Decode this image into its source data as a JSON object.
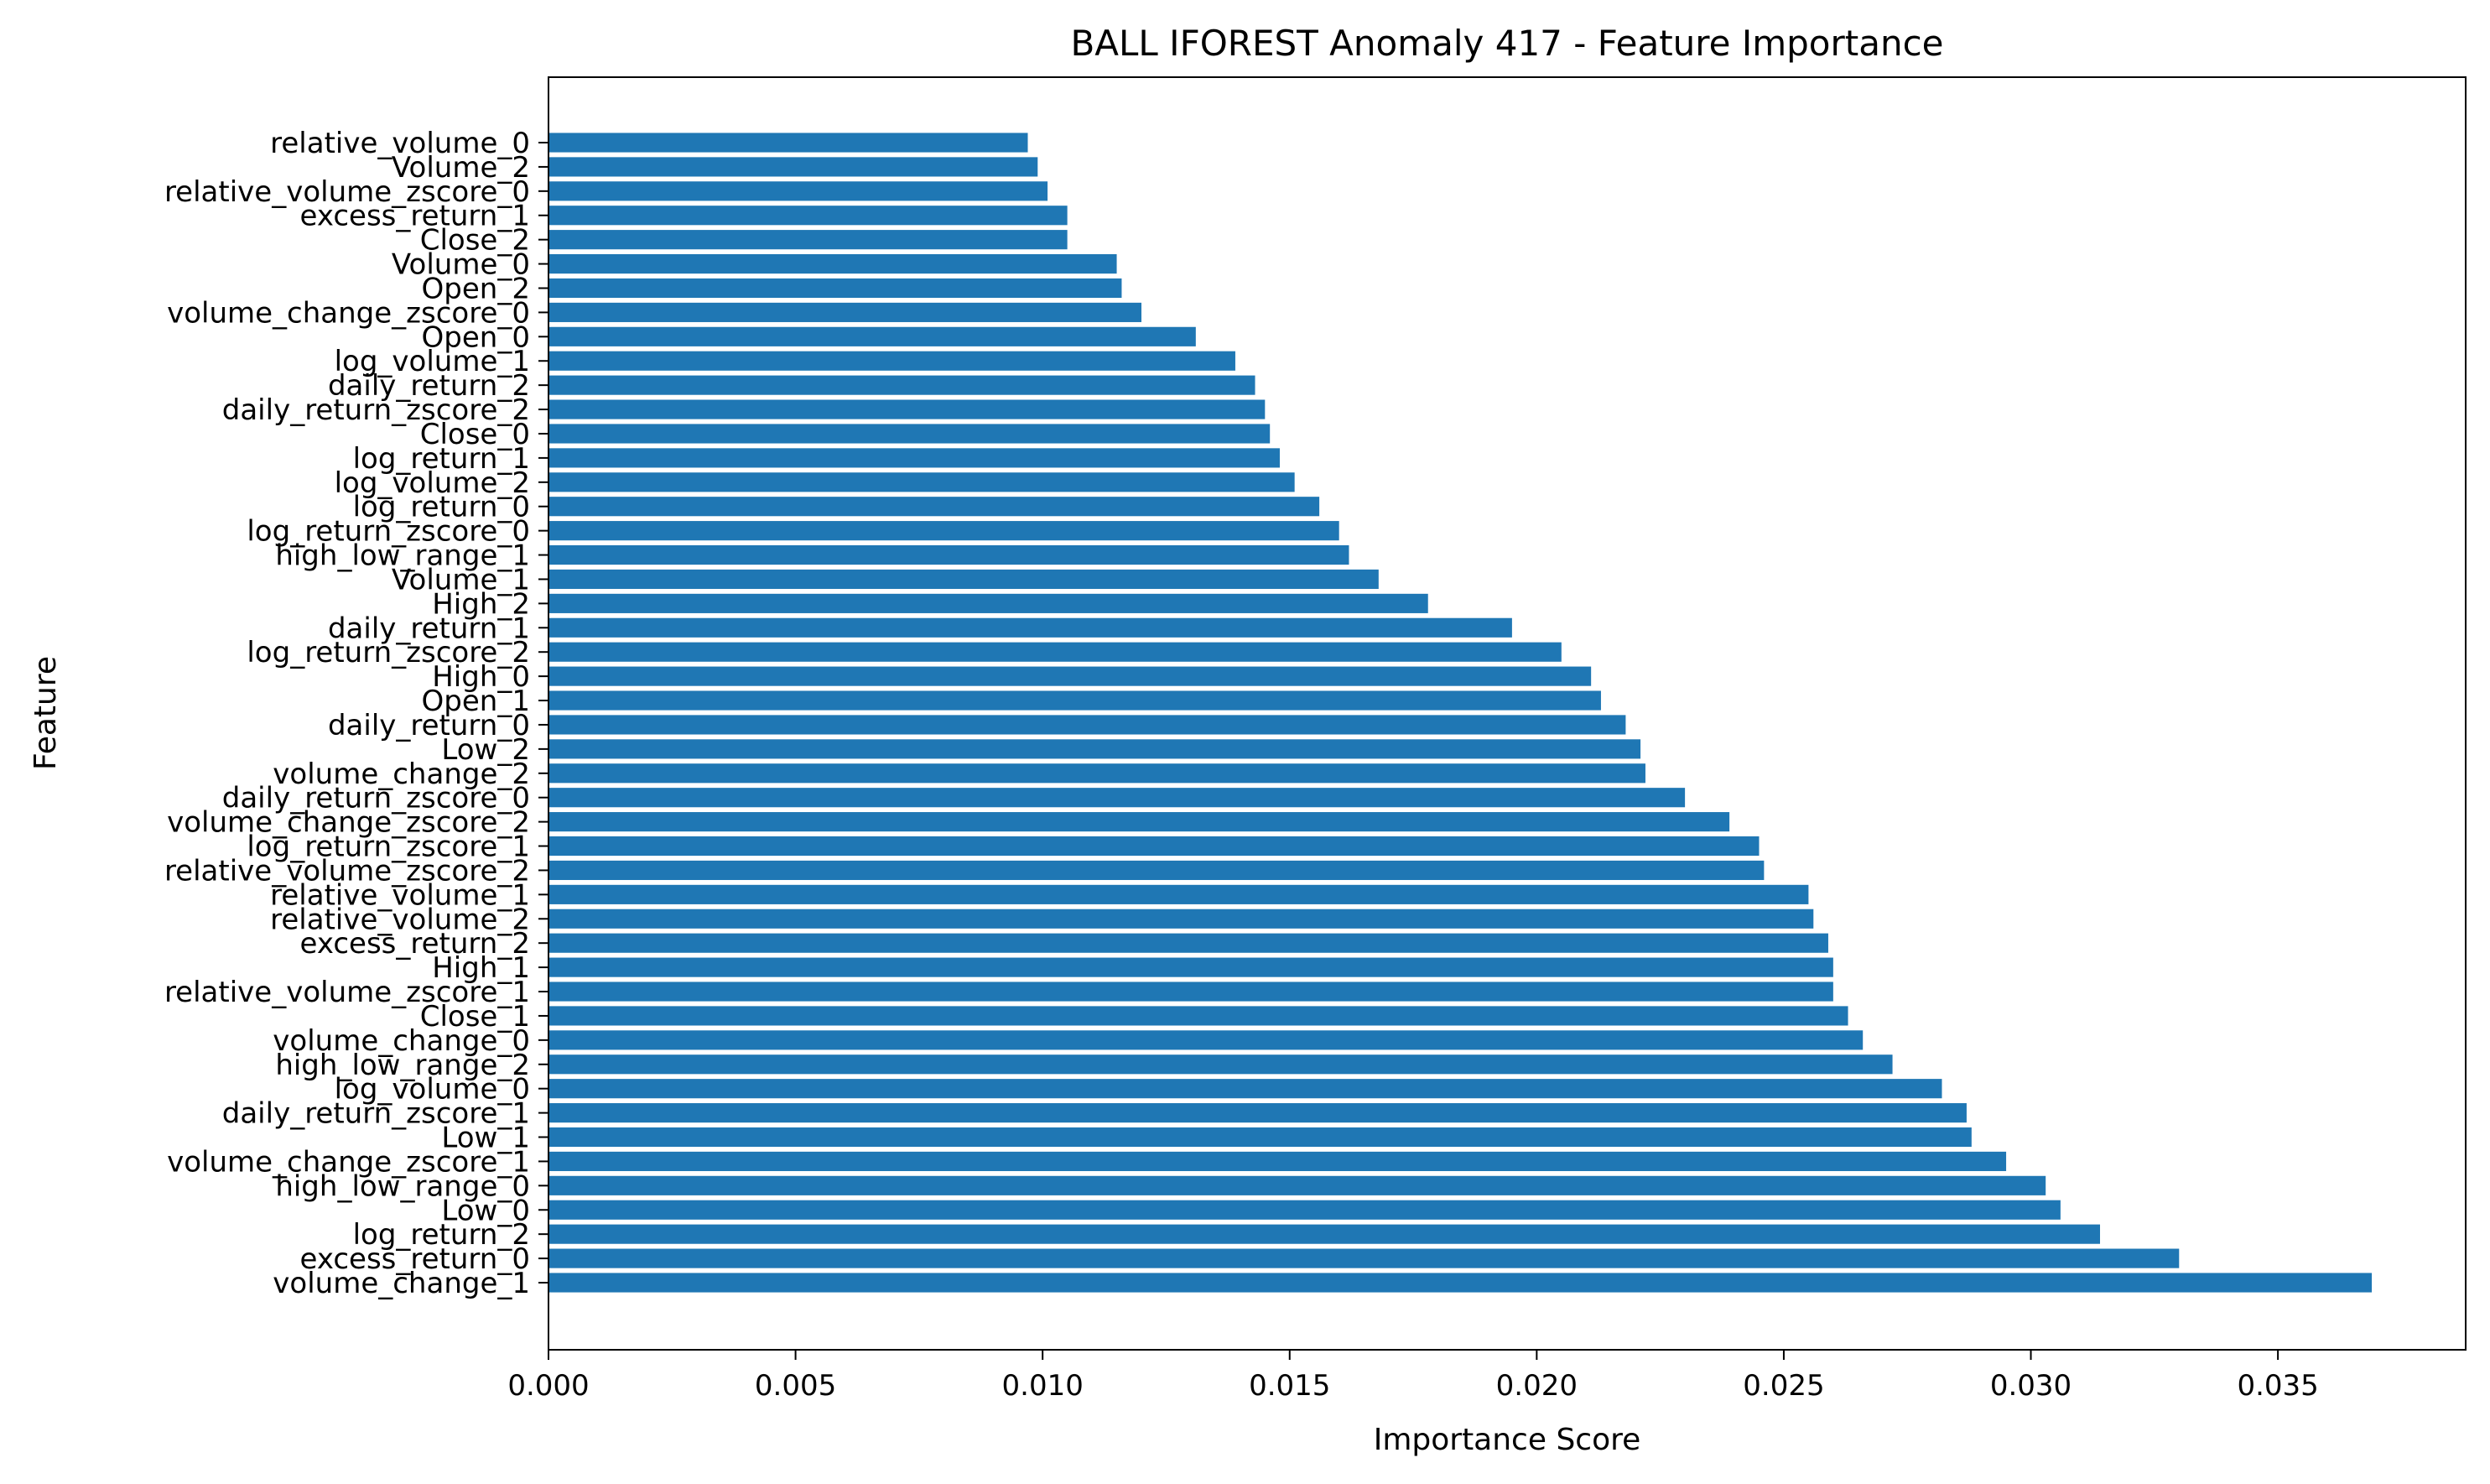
{
  "chart_data": {
    "type": "bar",
    "orientation": "horizontal",
    "title": "BALL IFOREST Anomaly 417 - Feature Importance",
    "xlabel": "Importance Score",
    "ylabel": "Feature",
    "xlim": [
      0,
      0.0388
    ],
    "xticks": [
      "0.000",
      "0.005",
      "0.010",
      "0.015",
      "0.020",
      "0.025",
      "0.030",
      "0.035"
    ],
    "xtick_values": [
      0,
      0.005,
      0.01,
      0.015,
      0.02,
      0.025,
      0.03,
      0.035
    ],
    "grid": false,
    "bar_color": "#1f77b4",
    "categories": [
      "volume_change_1",
      "excess_return_0",
      "log_return_2",
      "Low_0",
      "high_low_range_0",
      "volume_change_zscore_1",
      "Low_1",
      "daily_return_zscore_1",
      "log_volume_0",
      "high_low_range_2",
      "volume_change_0",
      "Close_1",
      "relative_volume_zscore_1",
      "High_1",
      "excess_return_2",
      "relative_volume_2",
      "relative_volume_1",
      "relative_volume_zscore_2",
      "log_return_zscore_1",
      "volume_change_zscore_2",
      "daily_return_zscore_0",
      "volume_change_2",
      "Low_2",
      "daily_return_0",
      "Open_1",
      "High_0",
      "log_return_zscore_2",
      "daily_return_1",
      "High_2",
      "Volume_1",
      "high_low_range_1",
      "log_return_zscore_0",
      "log_return_0",
      "log_volume_2",
      "log_return_1",
      "Close_0",
      "daily_return_zscore_2",
      "daily_return_2",
      "log_volume_1",
      "Open_0",
      "volume_change_zscore_0",
      "Open_2",
      "Volume_0",
      "Close_2",
      "excess_return_1",
      "relative_volume_zscore_0",
      "Volume_2",
      "relative_volume_0"
    ],
    "values": [
      0.0369,
      0.033,
      0.0314,
      0.0306,
      0.0303,
      0.0295,
      0.0288,
      0.0287,
      0.0282,
      0.0272,
      0.0266,
      0.0263,
      0.026,
      0.026,
      0.0259,
      0.0256,
      0.0255,
      0.0246,
      0.0245,
      0.0239,
      0.023,
      0.0222,
      0.0221,
      0.0218,
      0.0213,
      0.0211,
      0.0205,
      0.0195,
      0.0178,
      0.0168,
      0.0162,
      0.016,
      0.0156,
      0.0151,
      0.0148,
      0.0146,
      0.0145,
      0.0143,
      0.0139,
      0.0131,
      0.012,
      0.0116,
      0.0115,
      0.0105,
      0.0105,
      0.0101,
      0.0099,
      0.0097
    ]
  }
}
